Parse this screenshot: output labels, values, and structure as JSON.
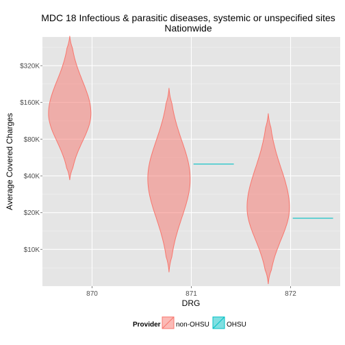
{
  "chart_data": {
    "type": "violin",
    "title": "MDC 18 Infectious & parasitic diseases, systemic or unspecified sites",
    "subtitle": "Nationwide",
    "xlabel": "DRG",
    "ylabel": "Average Covered Charges",
    "categories": [
      "870",
      "871",
      "872"
    ],
    "y_scale": "log",
    "y_ticks": [
      {
        "value": 10000,
        "label": "$10K"
      },
      {
        "value": 20000,
        "label": "$20K"
      },
      {
        "value": 40000,
        "label": "$40K"
      },
      {
        "value": 80000,
        "label": "$80K"
      },
      {
        "value": 160000,
        "label": "$160K"
      },
      {
        "value": 320000,
        "label": "$320K"
      }
    ],
    "ylim": [
      5000,
      550000
    ],
    "grid": true,
    "legend": {
      "title": "Provider",
      "position": "bottom",
      "entries": [
        {
          "name": "non-OHSU",
          "color": "#F8766D"
        },
        {
          "name": "OHSU",
          "color": "#00BFC4"
        }
      ]
    },
    "series": [
      {
        "name": "non-OHSU",
        "color": "#F8766D",
        "violins": [
          {
            "category": "870",
            "min": 37000,
            "max": 560000,
            "peak": 130000
          },
          {
            "category": "871",
            "min": 6500,
            "max": 210000,
            "peak": 38000
          },
          {
            "category": "872",
            "min": 5200,
            "max": 130000,
            "peak": 22000
          }
        ]
      },
      {
        "name": "OHSU",
        "color": "#00BFC4",
        "violins": [
          {
            "category": "871",
            "value": 50000
          },
          {
            "category": "872",
            "value": 18000
          }
        ]
      }
    ]
  }
}
